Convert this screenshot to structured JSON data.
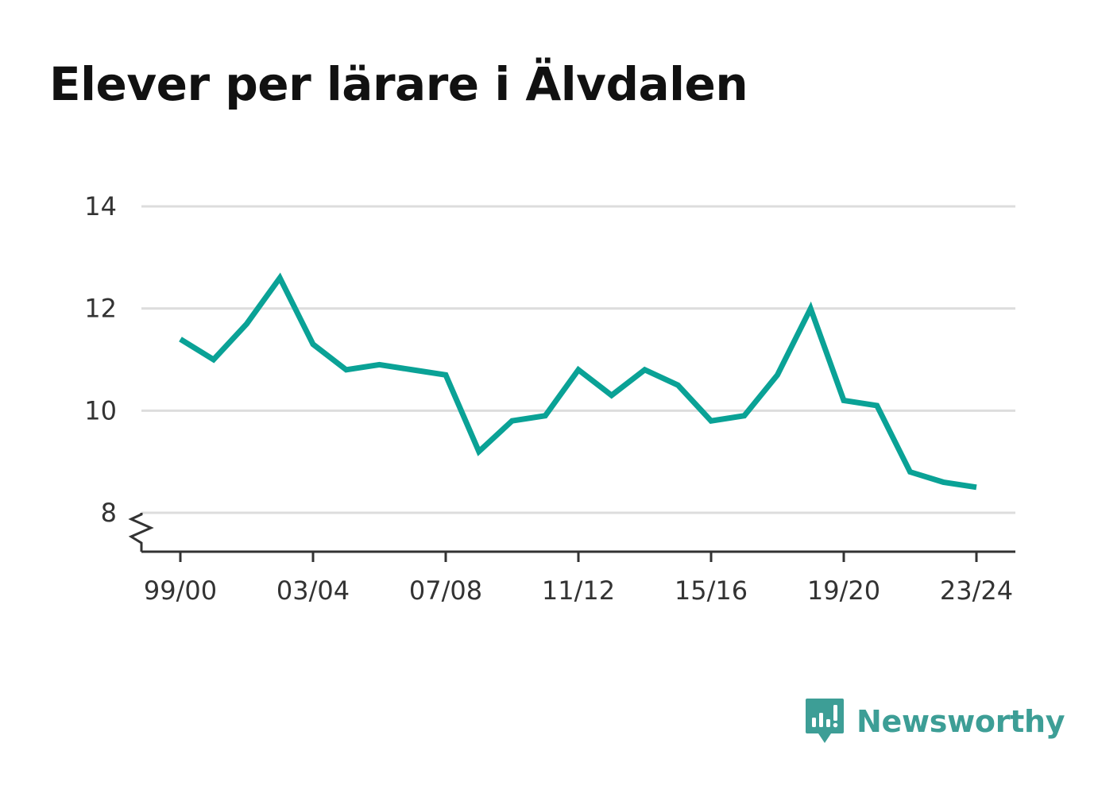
{
  "title": "Elever per lärare i Älvdalen",
  "brand": {
    "name": "Newsworthy",
    "icon": "newsworthy-logo-icon",
    "color": "#3d9e96"
  },
  "chart_data": {
    "type": "line",
    "title": "Elever per lärare i Älvdalen",
    "xlabel": "",
    "ylabel": "",
    "color": "#0aa296",
    "grid": true,
    "legend": "none",
    "ylim": [
      8,
      14
    ],
    "y_ticks": [
      8,
      10,
      12,
      14
    ],
    "x": [
      "99/00",
      "00/01",
      "01/02",
      "02/03",
      "03/04",
      "04/05",
      "05/06",
      "06/07",
      "07/08",
      "08/09",
      "09/10",
      "10/11",
      "11/12",
      "12/13",
      "13/14",
      "14/15",
      "15/16",
      "16/17",
      "17/18",
      "18/19",
      "19/20",
      "20/21",
      "21/22",
      "22/23",
      "23/24"
    ],
    "x_tick_labels": [
      "99/00",
      "03/04",
      "07/08",
      "11/12",
      "15/16",
      "19/20",
      "23/24"
    ],
    "values": [
      11.4,
      11.0,
      11.7,
      12.6,
      11.3,
      10.8,
      10.9,
      10.8,
      10.7,
      9.2,
      9.8,
      9.9,
      10.8,
      10.3,
      10.8,
      10.5,
      9.8,
      9.9,
      10.7,
      12.0,
      10.2,
      10.1,
      8.8,
      8.6,
      8.5
    ]
  }
}
